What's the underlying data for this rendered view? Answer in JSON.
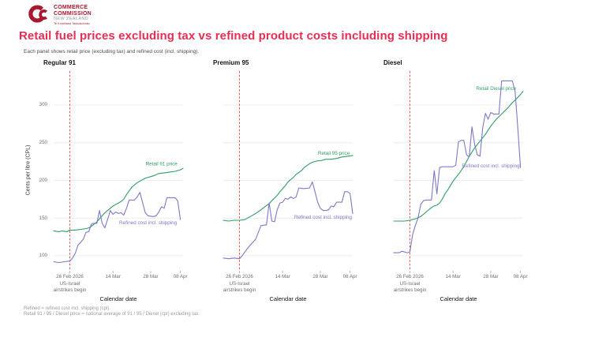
{
  "header": {
    "logo": {
      "line1": "COMMERCE",
      "line2": "COMMISSION",
      "line3": "NEW ZEALAND",
      "line4": "Te Komihana Tauhokohoko"
    },
    "title": "Retail fuel prices excluding tax vs refined product costs including shipping",
    "subtitle": "Each panel shows retail price (excluding tax) and refined cost (incl. shipping)."
  },
  "colors": {
    "retail": "#2f9e63",
    "refined": "#7d79c7",
    "event_line": "#e4433f",
    "title": "#e62e53",
    "brand": "#a6192e",
    "grid": "#ececec",
    "tick_mark": "#aaaaaa"
  },
  "axes": {
    "y_title": "Cents per litre (CPL)",
    "y_ticks": [
      100,
      150,
      200,
      250,
      300
    ],
    "y_range": [
      80,
      345
    ],
    "x_title": "Calendar date",
    "x_range_days": [
      0,
      48
    ],
    "x_unit": "day index (0 = 20 Feb 2026)",
    "grid": true,
    "x_ticks": [
      {
        "day": 6,
        "label": "26 Feb 2026"
      },
      {
        "day": 22,
        "label": "14 Mar"
      },
      {
        "day": 36,
        "label": "28 Mar"
      },
      {
        "day": 47,
        "label": "08 Apr"
      }
    ]
  },
  "event": {
    "day": 6,
    "label_lines": [
      "US-Israel",
      "airstrikes begin"
    ]
  },
  "footnotes": [
    "Refined = refined cost incl. shipping (cpl).",
    "Retail 91 / 95 / Diesel price = national average of 91 / 95 / Diesel (cpl) excluding tax."
  ],
  "chart_data": [
    {
      "id": "regular-91",
      "title": "Regular 91",
      "type": "line",
      "series": [
        {
          "name": "Retail 91 price",
          "role": "retail",
          "label_anchor": {
            "day": 40,
            "value": 220
          },
          "points": [
            [
              0,
              133
            ],
            [
              2,
              132
            ],
            [
              3,
              133
            ],
            [
              5,
              132
            ],
            [
              6,
              134
            ],
            [
              8,
              134
            ],
            [
              10,
              135
            ],
            [
              12,
              136
            ],
            [
              13,
              137
            ],
            [
              14,
              139
            ],
            [
              15,
              142
            ],
            [
              16,
              145
            ],
            [
              17,
              149
            ],
            [
              18,
              153
            ],
            [
              19,
              157
            ],
            [
              20,
              160
            ],
            [
              21,
              163
            ],
            [
              22,
              166
            ],
            [
              23,
              168
            ],
            [
              24,
              170
            ],
            [
              25,
              172
            ],
            [
              26,
              175
            ],
            [
              27,
              181
            ],
            [
              28,
              186
            ],
            [
              29,
              191
            ],
            [
              30,
              194
            ],
            [
              31,
              197
            ],
            [
              33,
              201
            ],
            [
              34,
              203
            ],
            [
              36,
              205
            ],
            [
              37,
              206
            ],
            [
              39,
              209
            ],
            [
              41,
              210
            ],
            [
              43,
              211
            ],
            [
              45,
              212
            ],
            [
              47,
              214
            ],
            [
              48,
              216
            ]
          ]
        },
        {
          "name": "Refined cost incl. shipping",
          "role": "refined",
          "label_anchor": {
            "day": 35,
            "value": 142
          },
          "points": [
            [
              0,
              92
            ],
            [
              2,
              91
            ],
            [
              4,
              92
            ],
            [
              6,
              93
            ],
            [
              7,
              97
            ],
            [
              8,
              103
            ],
            [
              9,
              114
            ],
            [
              10,
              118
            ],
            [
              11,
              122
            ],
            [
              12,
              131
            ],
            [
              13,
              132
            ],
            [
              14,
              142
            ],
            [
              15,
              143
            ],
            [
              16,
              143
            ],
            [
              17,
              160
            ],
            [
              18,
              143
            ],
            [
              19,
              137
            ],
            [
              20,
              148
            ],
            [
              21,
              160
            ],
            [
              22,
              155
            ],
            [
              23,
              158
            ],
            [
              24,
              156
            ],
            [
              25,
              157
            ],
            [
              26,
              154
            ],
            [
              27,
              163
            ],
            [
              28,
              174
            ],
            [
              29,
              174
            ],
            [
              30,
              174
            ],
            [
              31,
              178
            ],
            [
              32,
              184
            ],
            [
              33,
              170
            ],
            [
              34,
              157
            ],
            [
              35,
              153
            ],
            [
              37,
              152
            ],
            [
              38,
              153
            ],
            [
              39,
              158
            ],
            [
              40,
              165
            ],
            [
              41,
              163
            ],
            [
              42,
              177
            ],
            [
              44,
              177
            ],
            [
              45,
              177
            ],
            [
              46,
              173
            ],
            [
              47,
              148
            ]
          ]
        }
      ]
    },
    {
      "id": "premium-95",
      "title": "Premium 95",
      "type": "line",
      "series": [
        {
          "name": "Retail 95 price",
          "role": "retail",
          "label_anchor": {
            "day": 41,
            "value": 234
          },
          "points": [
            [
              0,
              147
            ],
            [
              2,
              146
            ],
            [
              4,
              147
            ],
            [
              6,
              147
            ],
            [
              8,
              148
            ],
            [
              9,
              150
            ],
            [
              10,
              152
            ],
            [
              12,
              156
            ],
            [
              14,
              161
            ],
            [
              15,
              164
            ],
            [
              17,
              169
            ],
            [
              18,
              173
            ],
            [
              20,
              180
            ],
            [
              21,
              185
            ],
            [
              23,
              193
            ],
            [
              24,
              198
            ],
            [
              26,
              204
            ],
            [
              27,
              208
            ],
            [
              29,
              213
            ],
            [
              30,
              217
            ],
            [
              32,
              222
            ],
            [
              33,
              224
            ],
            [
              35,
              226
            ],
            [
              36,
              226
            ],
            [
              38,
              228
            ],
            [
              40,
              228
            ],
            [
              42,
              229
            ],
            [
              44,
              231
            ],
            [
              46,
              232
            ],
            [
              48,
              233
            ]
          ]
        },
        {
          "name": "Refined cost incl. shipping",
          "role": "refined",
          "label_anchor": {
            "day": 37,
            "value": 149
          },
          "points": [
            [
              0,
              97
            ],
            [
              2,
              96
            ],
            [
              4,
              97
            ],
            [
              6,
              96
            ],
            [
              7,
              100
            ],
            [
              8,
              105
            ],
            [
              9,
              110
            ],
            [
              10,
              114
            ],
            [
              11,
              118
            ],
            [
              12,
              122
            ],
            [
              13,
              131
            ],
            [
              14,
              140
            ],
            [
              16,
              141
            ],
            [
              17,
              170
            ],
            [
              18,
              146
            ],
            [
              19,
              145
            ],
            [
              20,
              161
            ],
            [
              21,
              170
            ],
            [
              22,
              171
            ],
            [
              23,
              176
            ],
            [
              24,
              175
            ],
            [
              25,
              178
            ],
            [
              26,
              176
            ],
            [
              27,
              178
            ],
            [
              28,
              190
            ],
            [
              30,
              189
            ],
            [
              32,
              190
            ],
            [
              33,
              198
            ],
            [
              34,
              185
            ],
            [
              35,
              171
            ],
            [
              36,
              163
            ],
            [
              37,
              160
            ],
            [
              38,
              160
            ],
            [
              39,
              161
            ],
            [
              40,
              166
            ],
            [
              41,
              165
            ],
            [
              42,
              171
            ],
            [
              44,
              171
            ],
            [
              45,
              185
            ],
            [
              46,
              185
            ],
            [
              47,
              183
            ],
            [
              48,
              156
            ]
          ]
        }
      ]
    },
    {
      "id": "diesel",
      "title": "Diesel",
      "type": "line",
      "series": [
        {
          "name": "Retail Diesel price",
          "role": "retail",
          "label_anchor": {
            "day": 38,
            "value": 320
          },
          "points": [
            [
              0,
              146
            ],
            [
              2,
              146
            ],
            [
              4,
              146
            ],
            [
              6,
              147
            ],
            [
              8,
              149
            ],
            [
              10,
              152
            ],
            [
              11,
              155
            ],
            [
              12,
              158
            ],
            [
              13,
              161
            ],
            [
              14,
              164
            ],
            [
              15,
              166
            ],
            [
              16,
              167
            ],
            [
              17,
              170
            ],
            [
              18,
              175
            ],
            [
              19,
              182
            ],
            [
              20,
              187
            ],
            [
              21,
              193
            ],
            [
              22,
              199
            ],
            [
              24,
              208
            ],
            [
              26,
              218
            ],
            [
              28,
              232
            ],
            [
              30,
              243
            ],
            [
              32,
              252
            ],
            [
              34,
              261
            ],
            [
              36,
              272
            ],
            [
              38,
              281
            ],
            [
              40,
              288
            ],
            [
              42,
              295
            ],
            [
              44,
              303
            ],
            [
              46,
              310
            ],
            [
              48,
              318
            ]
          ]
        },
        {
          "name": "Refined cost incl. shipping",
          "role": "refined",
          "label_anchor": {
            "day": 36,
            "value": 217
          },
          "points": [
            [
              0,
              104
            ],
            [
              2,
              104
            ],
            [
              3,
              106
            ],
            [
              5,
              104
            ],
            [
              6,
              105
            ],
            [
              7,
              128
            ],
            [
              8,
              140
            ],
            [
              9,
              150
            ],
            [
              10,
              168
            ],
            [
              11,
              173
            ],
            [
              12,
              174
            ],
            [
              14,
              174
            ],
            [
              15,
              213
            ],
            [
              16,
              182
            ],
            [
              17,
              217
            ],
            [
              18,
              218
            ],
            [
              20,
              218
            ],
            [
              22,
              218
            ],
            [
              23,
              220
            ],
            [
              24,
              251
            ],
            [
              25,
              253
            ],
            [
              26,
              253
            ],
            [
              27,
              234
            ],
            [
              28,
              231
            ],
            [
              29,
              271
            ],
            [
              30,
              248
            ],
            [
              31,
              234
            ],
            [
              32,
              232
            ],
            [
              33,
              270
            ],
            [
              34,
              289
            ],
            [
              35,
              281
            ],
            [
              36,
              290
            ],
            [
              37,
              288
            ],
            [
              39,
              288
            ],
            [
              40,
              332
            ],
            [
              42,
              332
            ],
            [
              44,
              332
            ],
            [
              45,
              318
            ],
            [
              46,
              270
            ],
            [
              47,
              217
            ]
          ]
        }
      ]
    }
  ]
}
